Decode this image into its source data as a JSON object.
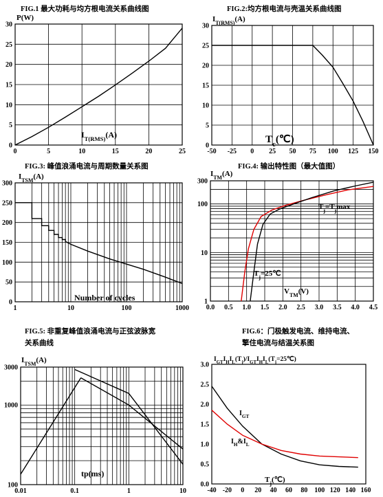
{
  "chart_data": [
    {
      "type": "line",
      "title": "FIG.1  最大功耗与均方根电流关系曲线图",
      "ylabel": "P(W)",
      "xlabel_main": "I",
      "xlabel_sub": "T(RMS)",
      "xlabel_tail": "(A)",
      "xlim": [
        0,
        25
      ],
      "ylim": [
        0,
        30
      ],
      "xticks": [
        0,
        5,
        10,
        15,
        20,
        25
      ],
      "yticks": [
        0,
        5,
        10,
        15,
        20,
        25,
        30
      ],
      "grid": true,
      "series": [
        {
          "color": "#000000",
          "x": [
            0,
            2.5,
            5,
            7.5,
            10,
            12.5,
            15,
            17.5,
            20,
            22.5,
            25
          ],
          "y": [
            0,
            2.1,
            4.4,
            6.9,
            9.5,
            12.1,
            14.9,
            17.8,
            20.8,
            24.0,
            29.0
          ]
        }
      ]
    },
    {
      "type": "line",
      "title": "FIG.2:均方根电流与壳温关系曲线图",
      "ylabel_main": "I",
      "ylabel_sub": "T(RMS)",
      "ylabel_tail": "(A)",
      "xlabel_main": "T",
      "xlabel_sub": "c",
      "xlabel_tail": "(℃)",
      "xlim": [
        -50,
        150
      ],
      "ylim": [
        0,
        30
      ],
      "xticks": [
        -50,
        -25,
        0,
        25,
        50,
        75,
        100,
        125,
        150
      ],
      "yticks": [
        0,
        5,
        10,
        15,
        20,
        25,
        30
      ],
      "grid": true,
      "series": [
        {
          "color": "#000000",
          "x": [
            -50,
            75,
            87,
            100,
            112,
            125,
            137,
            150
          ],
          "y": [
            25,
            25,
            22.5,
            19.5,
            15.5,
            11,
            6,
            0
          ]
        }
      ]
    },
    {
      "type": "line",
      "title": "FIG.3:  峰值浪涌电流与周期数量关系图",
      "ylabel_main": "I",
      "ylabel_sub": "TSM",
      "ylabel_tail": "(A)",
      "xlabel": "Number of cycles",
      "xscale": "log",
      "xlim": [
        1,
        1000
      ],
      "ylim": [
        0,
        300
      ],
      "xticks": [
        1,
        10,
        100,
        1000
      ],
      "yticks": [
        0,
        50,
        100,
        150,
        200,
        250,
        300
      ],
      "grid": true,
      "series": [
        {
          "color": "#000000",
          "x": [
            1,
            2,
            2,
            3,
            3,
            4,
            4,
            5,
            5,
            6,
            6,
            7,
            7,
            8,
            8,
            10,
            20,
            50,
            100,
            200,
            500,
            1000
          ],
          "y": [
            250,
            250,
            210,
            210,
            192,
            192,
            180,
            180,
            170,
            170,
            162,
            162,
            157,
            157,
            152,
            145,
            128,
            108,
            95,
            82,
            62,
            46
          ]
        }
      ]
    },
    {
      "type": "line",
      "title": "FIG.4:  输出特性图（最大值图）",
      "ylabel_main": "I",
      "ylabel_sub": "TM",
      "ylabel_tail": "(A)",
      "xlabel_main": "V",
      "xlabel_sub": "TM",
      "xlabel_tail": "(V)",
      "yscale": "log",
      "xlim": [
        0,
        4.5
      ],
      "ylim": [
        1,
        300
      ],
      "xticks": [
        "0.0",
        "0.5",
        "1.0",
        "1.5",
        "2.0",
        "2.5",
        "3.0",
        "3.5",
        "4.0",
        "4.5"
      ],
      "yticks": [
        1,
        10,
        100,
        300
      ],
      "grid": true,
      "annotations": [
        {
          "text_main": "T",
          "text_sub": "j",
          "text_mid": "=T",
          "text_sub2": "j",
          "text_tail": "max"
        },
        {
          "text_main": "T",
          "text_sub": "j",
          "text_tail": "=25℃"
        }
      ],
      "series": [
        {
          "name": "Tj=Tjmax",
          "color": "#e00000",
          "x": [
            0.85,
            0.95,
            1.05,
            1.2,
            1.4,
            1.7,
            2.1,
            2.6,
            3.2,
            3.8,
            4.5
          ],
          "y": [
            1,
            4,
            12,
            30,
            55,
            75,
            95,
            120,
            155,
            195,
            230
          ]
        },
        {
          "name": "Tj=25℃",
          "color": "#000000",
          "x": [
            1.1,
            1.2,
            1.3,
            1.45,
            1.65,
            1.9,
            2.3,
            2.8,
            3.4,
            4.0,
            4.5
          ],
          "y": [
            1,
            4,
            15,
            38,
            62,
            78,
            100,
            135,
            185,
            235,
            280
          ]
        }
      ]
    },
    {
      "type": "line",
      "title_line1": "FIG.5:  非重复峰值浪涌电流与正弦波脉宽",
      "title_line2": "关系曲线",
      "ylabel_main": "I",
      "ylabel_sub": "TSM",
      "ylabel_tail": "(A)",
      "xlabel": "tp(ms)",
      "xscale": "log",
      "yscale": "log",
      "xlim": [
        0.01,
        10
      ],
      "ylim": [
        100,
        3000
      ],
      "xticks": [
        "0.01",
        "0.1",
        "1",
        "10"
      ],
      "yticks": [
        "100",
        "1000",
        "3000"
      ],
      "grid": true,
      "series": [
        {
          "color": "#000000",
          "x": [
            0.01,
            0.13
          ],
          "y": [
            135,
            2200
          ]
        },
        {
          "color": "#000000",
          "x": [
            0.13,
            1,
            10
          ],
          "y": [
            2200,
            1000,
            280
          ]
        },
        {
          "color": "#000000",
          "x": [
            0.1,
            1,
            10
          ],
          "y": [
            2800,
            1400,
            180
          ]
        }
      ]
    },
    {
      "type": "line",
      "title_line1": "FIG.6：门极触发电流、维持电流、",
      "title_line2": "擎住电流与结温关系图",
      "ylabel_parts": [
        "I",
        "GT",
        "I",
        "H",
        "I",
        "L",
        "(T",
        "j",
        ")/I",
        "GT",
        "I",
        "H",
        "I",
        "L",
        "(T",
        "j",
        "=25℃)"
      ],
      "xlabel_main": "T",
      "xlabel_sub": "j",
      "xlabel_tail": "(℃)",
      "xlim": [
        -40,
        160
      ],
      "ylim": [
        0,
        3
      ],
      "xticks": [
        -40,
        -20,
        0,
        20,
        40,
        60,
        80,
        100,
        120,
        140,
        160
      ],
      "yticks": [
        "0.0",
        "0.5",
        "1.0",
        "1.5",
        "2.0",
        "2.5",
        "3.0"
      ],
      "grid": false,
      "annotations": [
        {
          "text_main": "I",
          "text_sub": "GT"
        },
        {
          "text_main": "I",
          "text_sub": "H",
          "text_mid": "&I",
          "text_sub2": "L"
        }
      ],
      "series": [
        {
          "name": "IGT",
          "color": "#000000",
          "x": [
            -40,
            -20,
            0,
            25,
            50,
            75,
            100,
            125,
            150
          ],
          "y": [
            2.45,
            1.9,
            1.45,
            1.0,
            0.75,
            0.58,
            0.48,
            0.44,
            0.42
          ]
        },
        {
          "name": "IH&IL",
          "color": "#e00000",
          "x": [
            -40,
            -20,
            0,
            25,
            50,
            75,
            100,
            125,
            150
          ],
          "y": [
            1.85,
            1.5,
            1.22,
            1.0,
            0.84,
            0.75,
            0.7,
            0.68,
            0.66
          ]
        }
      ]
    }
  ]
}
